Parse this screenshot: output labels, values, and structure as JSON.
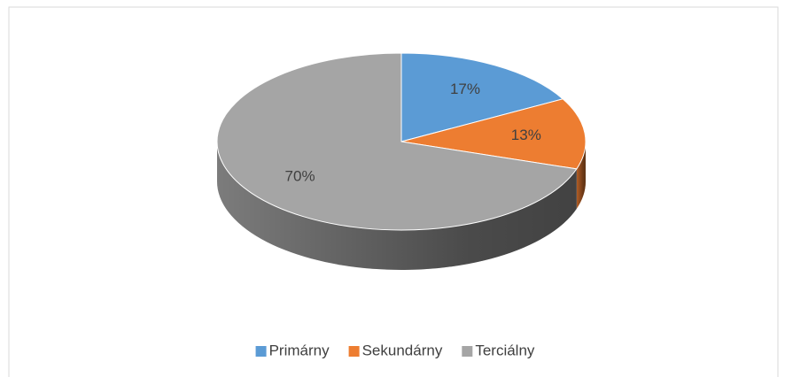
{
  "chart_data": {
    "type": "pie3d",
    "categories": [
      "Primárny",
      "Sekundárny",
      "Terciálny"
    ],
    "values": [
      17,
      13,
      70
    ],
    "value_labels": [
      "17%",
      "13%",
      "70%"
    ],
    "colors": [
      "#5b9bd5",
      "#ed7d31",
      "#a5a5a5"
    ],
    "legend": "bottom"
  }
}
